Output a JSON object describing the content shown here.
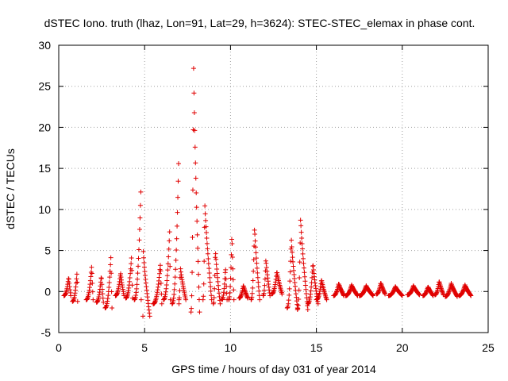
{
  "chart_data": {
    "type": "scatter",
    "title": "dSTEC Iono. truth (lhaz, Lon=91, Lat=29, h=3624): STEC-STEC_elemax in phase cont.",
    "xlabel": "GPS time / hours of day 031 of year 2014",
    "ylabel": "dSTEC  / TECUs",
    "xlim": [
      0,
      25
    ],
    "ylim": [
      -5,
      30
    ],
    "xticks": [
      0,
      5,
      10,
      15,
      20,
      25
    ],
    "yticks": [
      -5,
      0,
      5,
      10,
      15,
      20,
      25,
      30
    ],
    "xtick_labels": [
      "0",
      "5",
      "10",
      "15",
      "20",
      "25"
    ],
    "ytick_labels": [
      "-5",
      "0",
      "5",
      "10",
      "15",
      "20",
      "25",
      "30"
    ],
    "grid": true,
    "marker": "+",
    "color": "#e00000",
    "arcs": [
      {
        "t0": 0.3,
        "t1": 0.7,
        "min": -0.5,
        "peak": 1.8,
        "pk": 0.7
      },
      {
        "t0": 0.8,
        "t1": 1.1,
        "min": -1.2,
        "peak": 2.5,
        "pk": 0.9
      },
      {
        "t0": 1.6,
        "t1": 2.0,
        "min": -1.0,
        "peak": 3.2,
        "pk": 0.8
      },
      {
        "t0": 2.2,
        "t1": 2.6,
        "min": -1.3,
        "peak": 2.0,
        "pk": 0.7
      },
      {
        "t0": 2.7,
        "t1": 3.1,
        "min": -2.0,
        "peak": 4.4,
        "pk": 0.85
      },
      {
        "t0": 3.3,
        "t1": 3.8,
        "min": -0.5,
        "peak": 2.3,
        "pk": 0.6
      },
      {
        "t0": 3.9,
        "t1": 4.3,
        "min": -0.8,
        "peak": 4.3,
        "pk": 0.85
      },
      {
        "t0": 4.4,
        "t1": 4.8,
        "min": -1.0,
        "peak": 12.3,
        "pk": 0.95
      },
      {
        "t0": 4.9,
        "t1": 5.3,
        "min": -3.0,
        "peak": 5.0,
        "pk": 0.05
      },
      {
        "t0": 5.5,
        "t1": 6.0,
        "min": -1.5,
        "peak": 3.5,
        "pk": 0.85
      },
      {
        "t0": 6.1,
        "t1": 6.5,
        "min": -1.0,
        "peak": 7.5,
        "pk": 0.9
      },
      {
        "t0": 6.6,
        "t1": 7.0,
        "min": -1.5,
        "peak": 15.8,
        "pk": 0.95
      },
      {
        "t0": 7.0,
        "t1": 7.4,
        "min": -1.0,
        "peak": 3.0,
        "pk": 0.2
      },
      {
        "t0": 7.7,
        "t1": 8.2,
        "min": -2.5,
        "peak": 27.7,
        "pk": 0.3
      },
      {
        "t0": 8.4,
        "t1": 8.9,
        "min": -1.0,
        "peak": 11.0,
        "pk": 0.2
      },
      {
        "t0": 9.0,
        "t1": 9.4,
        "min": -1.5,
        "peak": 5.2,
        "pk": 0.3
      },
      {
        "t0": 9.5,
        "t1": 9.8,
        "min": -1.0,
        "peak": 3.0,
        "pk": 0.7
      },
      {
        "t0": 9.9,
        "t1": 10.2,
        "min": -1.0,
        "peak": 7.2,
        "pk": 0.6
      },
      {
        "t0": 10.5,
        "t1": 11.0,
        "min": -0.8,
        "peak": 0.8,
        "pk": 0.5
      },
      {
        "t0": 11.2,
        "t1": 11.7,
        "min": -1.0,
        "peak": 7.9,
        "pk": 0.4
      },
      {
        "t0": 11.9,
        "t1": 12.3,
        "min": -0.5,
        "peak": 4.0,
        "pk": 0.4
      },
      {
        "t0": 12.4,
        "t1": 13.0,
        "min": -0.3,
        "peak": 2.5,
        "pk": 0.5
      },
      {
        "t0": 13.3,
        "t1": 13.9,
        "min": -2.0,
        "peak": 6.5,
        "pk": 0.4
      },
      {
        "t0": 13.9,
        "t1": 14.5,
        "min": -2.2,
        "peak": 9.0,
        "pk": 0.3
      },
      {
        "t0": 14.5,
        "t1": 15.1,
        "min": -1.5,
        "peak": 3.5,
        "pk": 0.5
      },
      {
        "t0": 15.0,
        "t1": 15.6,
        "min": -1.0,
        "peak": 1.5,
        "pk": 0.5
      },
      {
        "t0": 16.0,
        "t1": 16.6,
        "min": -0.5,
        "peak": 1.0,
        "pk": 0.5
      },
      {
        "t0": 16.7,
        "t1": 17.4,
        "min": -0.5,
        "peak": 0.8,
        "pk": 0.5
      },
      {
        "t0": 17.5,
        "t1": 18.3,
        "min": -0.5,
        "peak": 0.7,
        "pk": 0.5
      },
      {
        "t0": 18.5,
        "t1": 19.0,
        "min": -0.3,
        "peak": 1.1,
        "pk": 0.5
      },
      {
        "t0": 19.2,
        "t1": 20.0,
        "min": -0.5,
        "peak": 0.6,
        "pk": 0.5
      },
      {
        "t0": 20.3,
        "t1": 21.0,
        "min": -0.4,
        "peak": 0.7,
        "pk": 0.5
      },
      {
        "t0": 21.2,
        "t1": 21.8,
        "min": -0.5,
        "peak": 0.6,
        "pk": 0.5
      },
      {
        "t0": 21.9,
        "t1": 22.4,
        "min": -0.4,
        "peak": 1.3,
        "pk": 0.5
      },
      {
        "t0": 22.5,
        "t1": 23.2,
        "min": -0.6,
        "peak": 1.0,
        "pk": 0.5
      },
      {
        "t0": 23.3,
        "t1": 24.0,
        "min": -0.5,
        "peak": 0.8,
        "pk": 0.5
      }
    ]
  }
}
